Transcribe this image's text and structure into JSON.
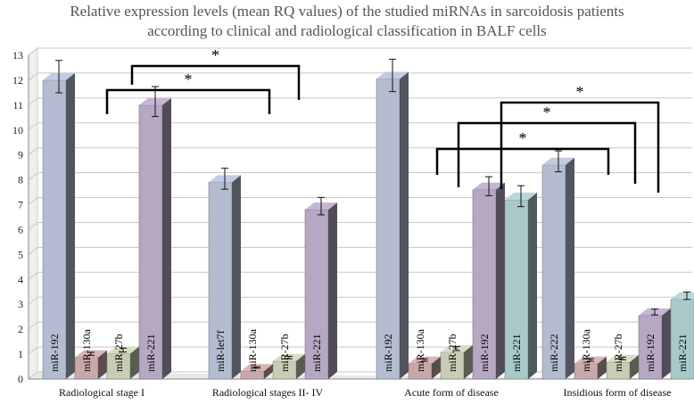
{
  "chart_data": {
    "type": "bar",
    "title_line1": "Relative expression levels (mean RQ values) of the studied miRNAs in sarcoidosis patients",
    "title_line2": "according to clinical and radiological classification in BALF cells",
    "ylim": [
      0,
      13
    ],
    "yticks": [
      0,
      1,
      2,
      3,
      4,
      5,
      6,
      7,
      8,
      9,
      10,
      11,
      12,
      13
    ],
    "grid": true,
    "groups": [
      {
        "name": "Radiological  stage I",
        "bars": [
          {
            "label": "miR-192",
            "value": 12.0,
            "err": 0.65,
            "color": "#b3bcd0"
          },
          {
            "label": "miR-130a",
            "value": 0.87,
            "err": 0.06,
            "color": "#c8a8a8"
          },
          {
            "label": "miR-27b",
            "value": 1.02,
            "err": 0.08,
            "color": "#c6cdb4"
          },
          {
            "label": "miR-221",
            "value": 11.0,
            "err": 0.6,
            "color": "#b6a8c2"
          }
        ]
      },
      {
        "name": "Radiological  stages  II- IV",
        "bars": [
          {
            "label": "miR-let7f",
            "value": 7.9,
            "err": 0.42,
            "color": "#b3bcd0"
          },
          {
            "label": "miR-130a",
            "value": 0.32,
            "err": 0.03,
            "color": "#c8a8a8"
          },
          {
            "label": "miR-27b",
            "value": 0.72,
            "err": 0.05,
            "color": "#c6cdb4"
          },
          {
            "label": "miR-221",
            "value": 6.8,
            "err": 0.35,
            "color": "#b6a8c2"
          }
        ]
      },
      {
        "name": "Acute form of disease",
        "bars": [
          {
            "label": "miR-192",
            "value": 12.05,
            "err": 0.65,
            "color": "#b3bcd0"
          },
          {
            "label": "miR-130a",
            "value": 0.62,
            "err": 0.05,
            "color": "#c8a8a8"
          },
          {
            "label": "miR-27b",
            "value": 1.08,
            "err": 0.08,
            "color": "#c6cdb4"
          },
          {
            "label": "miR-192",
            "value": 7.6,
            "err": 0.38,
            "color": "#b6a8c2"
          },
          {
            "label": "miR-221",
            "value": 7.2,
            "err": 0.42,
            "color": "#a9c9c9"
          }
        ]
      },
      {
        "name": "Insidious  form of disease",
        "bars": [
          {
            "label": "miR-222",
            "value": 8.6,
            "err": 0.42,
            "color": "#b3bcd0"
          },
          {
            "label": "miR-130a",
            "value": 0.62,
            "err": 0.05,
            "color": "#c8a8a8"
          },
          {
            "label": "miR-27b",
            "value": 0.68,
            "err": 0.05,
            "color": "#c6cdb4"
          },
          {
            "label": "miR-192",
            "value": 2.55,
            "err": 0.12,
            "color": "#b6a8c2"
          },
          {
            "label": "miR-221",
            "value": 3.2,
            "err": 0.15,
            "color": "#a9c9c9"
          }
        ]
      }
    ],
    "significance": [
      {
        "group": 0,
        "from": 0,
        "to": 3,
        "label": "*"
      },
      {
        "group": 0,
        "from": 3,
        "to": 6,
        "label": "*"
      },
      {
        "group": 2,
        "from": 2,
        "to": 3,
        "label": "*"
      },
      {
        "group": 2,
        "from": 3,
        "to": 3,
        "label": "*"
      },
      {
        "group": 2,
        "from": 4,
        "to": 4,
        "label": "*"
      }
    ]
  }
}
